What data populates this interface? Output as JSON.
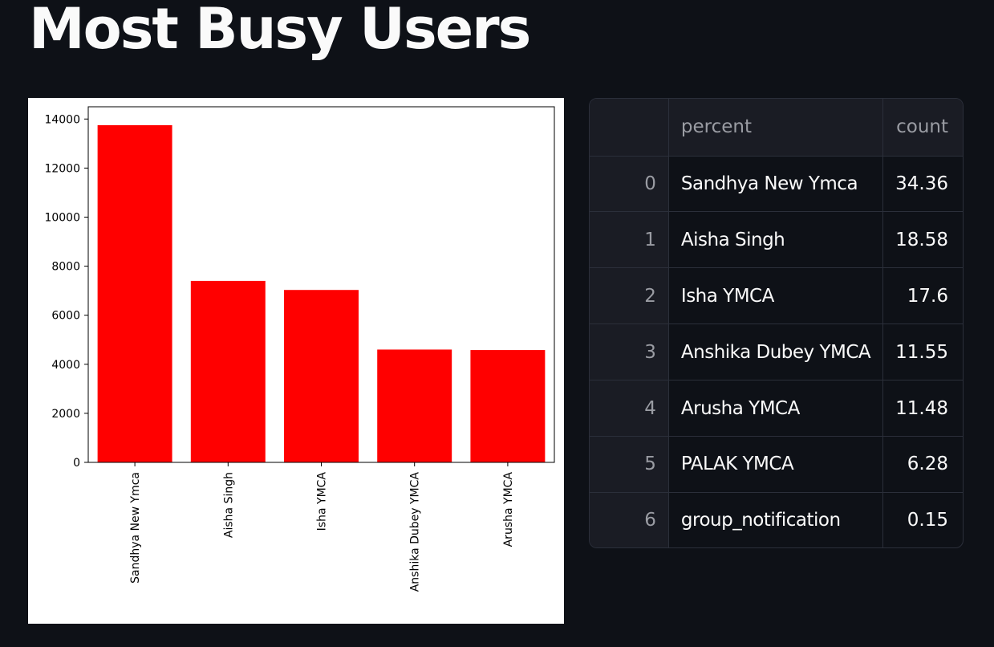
{
  "page": {
    "title": "Most Busy Users"
  },
  "chart_data": {
    "type": "bar",
    "categories": [
      "Sandhya New Ymca",
      "Aisha Singh",
      "Isha YMCA",
      "Anshika Dubey YMCA",
      "Arusha YMCA"
    ],
    "values": [
      13750,
      7400,
      7030,
      4600,
      4580
    ],
    "ylim": [
      0,
      14500
    ],
    "yticks": [
      0,
      2000,
      4000,
      6000,
      8000,
      10000,
      12000,
      14000
    ],
    "bar_color": "#ff0000",
    "xlabel": "",
    "ylabel": "",
    "grid": false
  },
  "table": {
    "columns": [
      "",
      "percent",
      "count"
    ],
    "rows": [
      {
        "index": "0",
        "name": "Sandhya New Ymca",
        "count": "34.36"
      },
      {
        "index": "1",
        "name": "Aisha Singh",
        "count": "18.58"
      },
      {
        "index": "2",
        "name": "Isha YMCA",
        "count": "17.6"
      },
      {
        "index": "3",
        "name": "Anshika Dubey YMCA",
        "count": "11.55"
      },
      {
        "index": "4",
        "name": "Arusha YMCA",
        "count": "11.48"
      },
      {
        "index": "5",
        "name": "PALAK YMCA",
        "count": "6.28"
      },
      {
        "index": "6",
        "name": "group_notification",
        "count": "0.15"
      }
    ]
  },
  "colors": {
    "background": "#0e1117",
    "text": "#fafafa",
    "muted_text": "#9a9ca3",
    "header_bg": "#1a1c24",
    "border": "#2b2f3a"
  }
}
